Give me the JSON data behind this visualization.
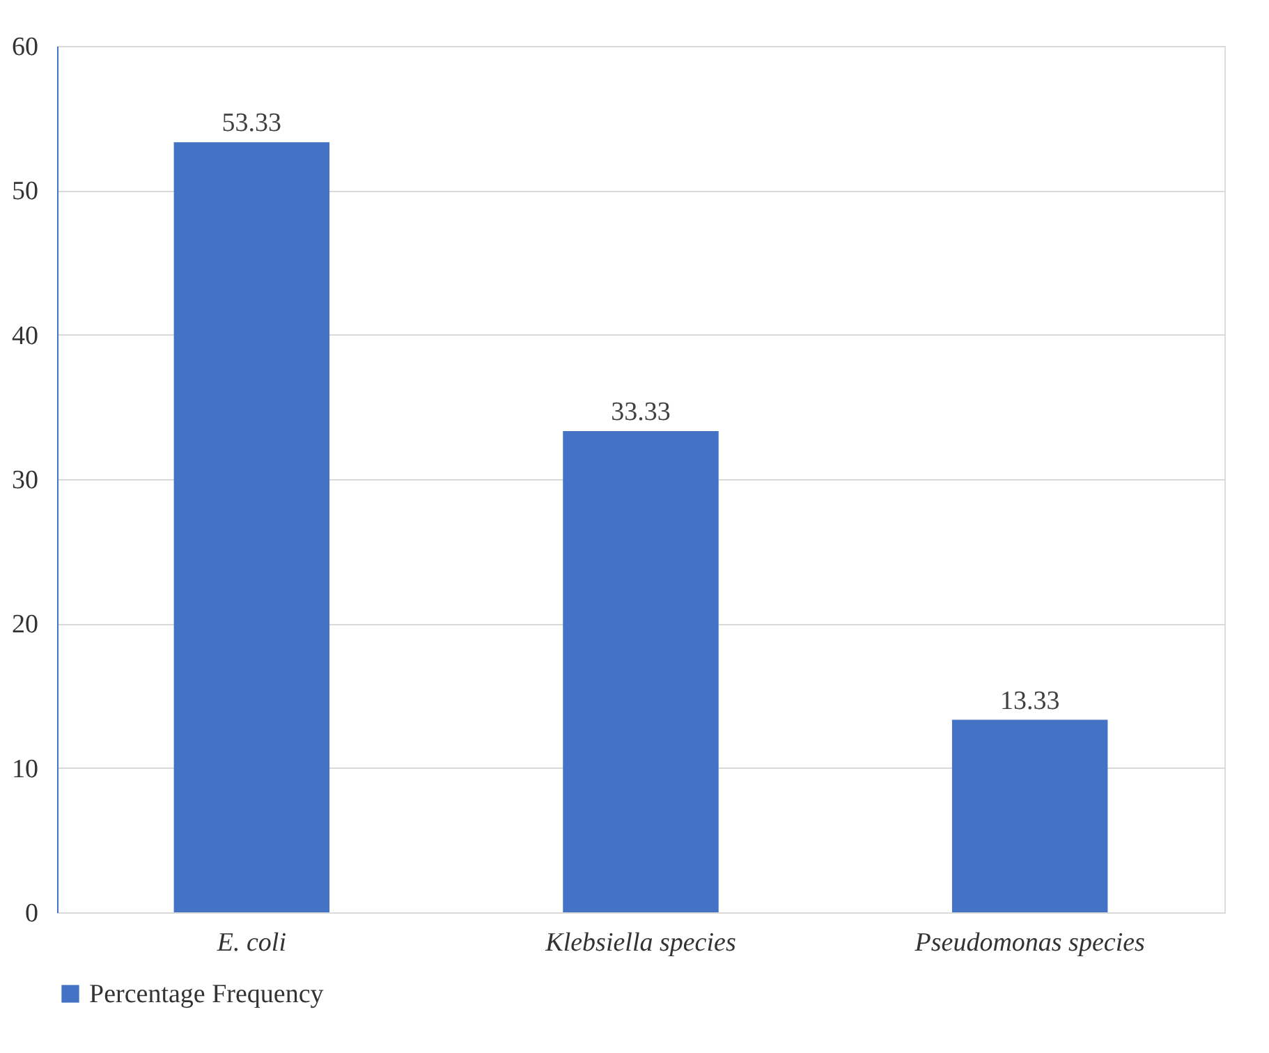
{
  "chart_data": {
    "type": "bar",
    "categories": [
      "E. coli",
      "Klebsiella species",
      "Pseudomonas species"
    ],
    "series": [
      {
        "name": "Percentage Frequency",
        "color": "#4472c4",
        "values": [
          53.33,
          33.33,
          13.33
        ]
      }
    ],
    "ylim": [
      0,
      60
    ],
    "yticks": [
      0,
      10,
      20,
      30,
      40,
      50,
      60
    ],
    "grid": "y",
    "legend": "bottom",
    "data_labels": true
  }
}
